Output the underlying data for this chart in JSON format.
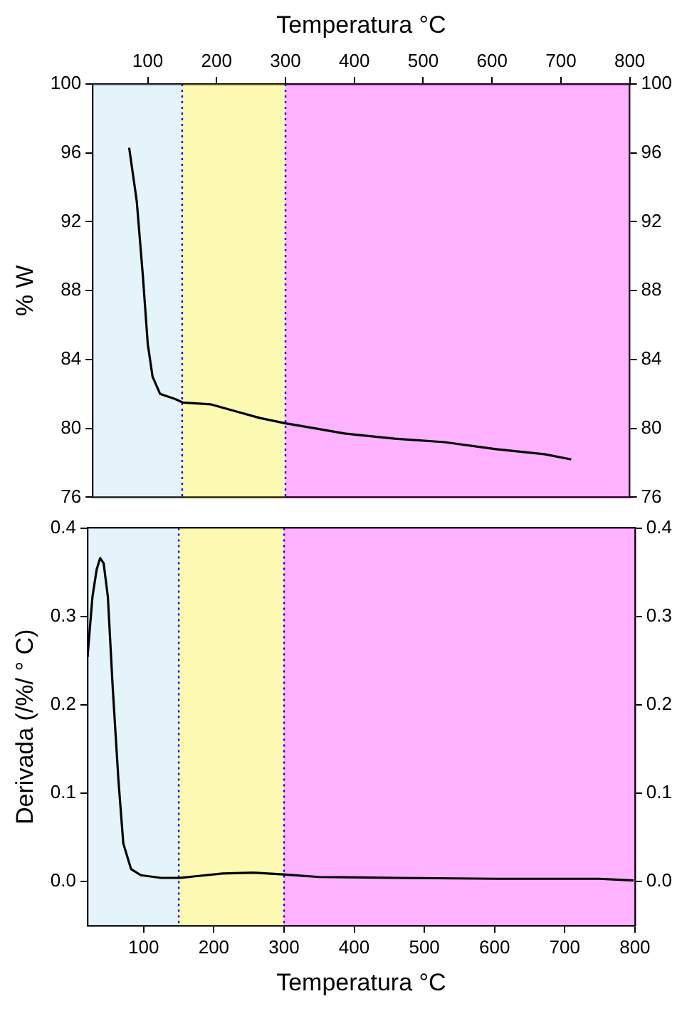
{
  "chart_data": [
    {
      "type": "line",
      "xlabel": "Temperatura °C",
      "ylabel": "% W",
      "xlim": [
        20,
        800
      ],
      "xticks": [
        100,
        200,
        300,
        400,
        500,
        600,
        700,
        800
      ],
      "ylim": [
        76,
        100
      ],
      "yticks": [
        76,
        80,
        84,
        88,
        92,
        96,
        100
      ],
      "y2lim": [
        76,
        100
      ],
      "y2ticks": [
        76,
        80,
        84,
        88,
        92,
        96,
        100
      ],
      "grid": false,
      "legend": false,
      "marker": "none",
      "line_style": "solid",
      "bands": [
        {
          "axis": "x",
          "from": 20,
          "to": 150,
          "color": "#a8d8f0"
        },
        {
          "axis": "x",
          "from": 150,
          "to": 300,
          "color": "#f5f000"
        },
        {
          "axis": "x",
          "from": 300,
          "to": 800,
          "color": "#ff00ff"
        }
      ],
      "ref_lines": [
        {
          "axis": "x",
          "value": 150,
          "color": "#0000ff",
          "line_style": "dotted"
        },
        {
          "axis": "x",
          "value": 300,
          "color": "#0000ff",
          "line_style": "dotted"
        }
      ],
      "series": [
        {
          "color": "#000000",
          "x": [
            73,
            84,
            93,
            100,
            107,
            118,
            140,
            151,
            191,
            227,
            263,
            299,
            343,
            386,
            459,
            531,
            604,
            676,
            715
          ],
          "values": [
            96.3,
            93.2,
            88.8,
            84.9,
            83.0,
            82.0,
            81.7,
            81.5,
            81.4,
            81.0,
            80.6,
            80.3,
            80.0,
            79.7,
            79.4,
            79.2,
            78.8,
            78.5,
            78.2
          ]
        }
      ]
    },
    {
      "type": "line",
      "xlabel": "Temperatura °C",
      "ylabel": "Derivada (/%/ ° C)",
      "xlim": [
        20,
        800
      ],
      "xticks": [
        100,
        200,
        300,
        400,
        500,
        600,
        700,
        800
      ],
      "ylim": [
        -0.05,
        0.4
      ],
      "yticks": [
        {
          "value": 0,
          "label": "0.0"
        },
        0.1,
        0.2,
        0.3,
        0.4
      ],
      "y2lim": [
        -0.05,
        0.4
      ],
      "y2ticks": [
        {
          "value": 0,
          "label": "0.0"
        },
        0.1,
        0.2,
        0.3,
        0.4
      ],
      "grid": false,
      "legend": false,
      "marker": "none",
      "line_style": "solid",
      "bands": [
        {
          "axis": "x",
          "from": 20,
          "to": 150,
          "color": "#a8d8f0"
        },
        {
          "axis": "x",
          "from": 150,
          "to": 300,
          "color": "#f5f000"
        },
        {
          "axis": "x",
          "from": 300,
          "to": 800,
          "color": "#ff00ff"
        }
      ],
      "ref_lines": [
        {
          "axis": "x",
          "value": 150,
          "color": "#0000ff",
          "line_style": "dotted"
        },
        {
          "axis": "x",
          "value": 300,
          "color": "#0000ff",
          "line_style": "dotted"
        }
      ],
      "series": [
        {
          "color": "#000000",
          "x": [
            20,
            27,
            33,
            38,
            43,
            49,
            56,
            64,
            71,
            82,
            96,
            125,
            151,
            176,
            212,
            256,
            299,
            350,
            459,
            604,
            749,
            798
          ],
          "values": [
            0.254,
            0.322,
            0.353,
            0.366,
            0.36,
            0.322,
            0.218,
            0.115,
            0.043,
            0.014,
            0.007,
            0.004,
            0.004,
            0.006,
            0.009,
            0.01,
            0.008,
            0.005,
            0.004,
            0.003,
            0.003,
            0.001
          ]
        }
      ]
    }
  ]
}
